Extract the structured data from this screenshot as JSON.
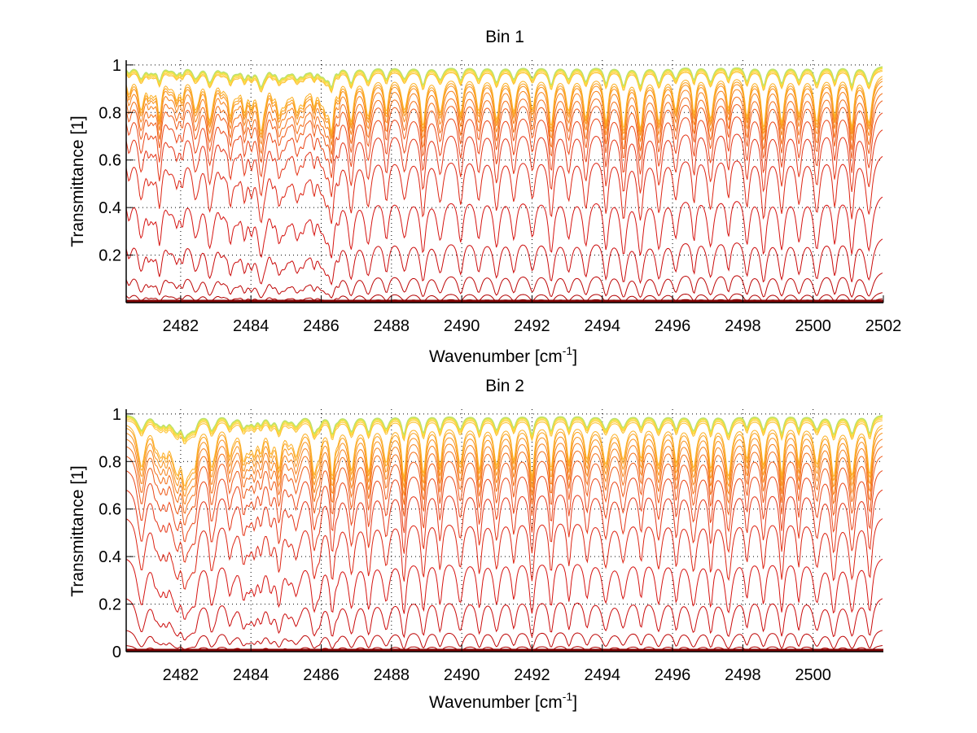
{
  "chart_data": [
    {
      "type": "line",
      "title": "Bin 1",
      "xlabel": "Wavenumber [cm",
      "xlabel_superscript": "-1",
      "xlabel_suffix": "]",
      "ylabel": "Transmittance [1]",
      "xlim": [
        2480.45,
        2502
      ],
      "ylim": [
        0,
        1.02
      ],
      "xticks": [
        2482,
        2484,
        2486,
        2488,
        2490,
        2492,
        2494,
        2496,
        2498,
        2500,
        2502
      ],
      "xtick_labels": [
        "2482",
        "2484",
        "2486",
        "2488",
        "2490",
        "2492",
        "2494",
        "2496",
        "2498",
        "2500",
        "2502"
      ],
      "yticks": [
        0.2,
        0.4,
        0.6,
        0.8,
        1
      ],
      "ytick_labels": [
        "0.2",
        "0.4",
        "0.6",
        "0.8",
        "1"
      ],
      "grid": true,
      "grid_style": "dotted",
      "series_count": 24,
      "series_description": "Family of transmittance spectra for increasing optical depth; continuum levels range from about 0.0 (dark red, bottom) to 1.0 (yellow-green, top)",
      "continuum_levels": [
        0.0,
        0.01,
        0.02,
        0.05,
        0.14,
        0.29,
        0.47,
        0.64,
        0.75,
        0.82,
        0.87,
        0.9,
        0.93,
        0.95,
        0.96,
        0.97,
        0.98,
        0.985,
        0.99,
        0.993,
        0.995,
        0.997,
        0.998,
        0.999
      ],
      "line_positions": [
        2480.9,
        2481.4,
        2481.9,
        2482.4,
        2482.9,
        2483.4,
        2483.8,
        2484.3,
        2484.8,
        2485.3,
        2485.8,
        2486.3,
        2486.85,
        2487.35,
        2487.85,
        2488.35,
        2488.9,
        2489.4,
        2489.95,
        2490.5,
        2491.0,
        2491.5,
        2492.0,
        2492.55,
        2493.05,
        2493.55,
        2494.1,
        2494.6,
        2495.1,
        2495.6,
        2496.1,
        2496.6,
        2497.1,
        2497.6,
        2498.1,
        2498.6,
        2499.1,
        2499.6,
        2500.1,
        2500.6,
        2501.1,
        2501.6
      ],
      "colormap": [
        "#7f0000",
        "#b00000",
        "#d41010",
        "#e8401a",
        "#f57a1a",
        "#fba820",
        "#ffd23a",
        "#e8e84a",
        "#b8e070"
      ]
    },
    {
      "type": "line",
      "title": "Bin 2",
      "xlabel": "Wavenumber [cm",
      "xlabel_superscript": "-1",
      "xlabel_suffix": "]",
      "ylabel": "Transmittance [1]",
      "xlim": [
        2480.45,
        2502
      ],
      "ylim": [
        0,
        1.02
      ],
      "xticks": [
        2482,
        2484,
        2486,
        2488,
        2490,
        2492,
        2494,
        2496,
        2498,
        2500
      ],
      "xtick_labels": [
        "2482",
        "2484",
        "2486",
        "2488",
        "2490",
        "2492",
        "2494",
        "2496",
        "2498",
        "2500"
      ],
      "yticks": [
        0,
        0.2,
        0.4,
        0.6,
        0.8,
        1
      ],
      "ytick_labels": [
        "0",
        "0.2",
        "0.4",
        "0.6",
        "0.8",
        "1"
      ],
      "grid": true,
      "grid_style": "dotted",
      "series_count": 24,
      "series_description": "Family of transmittance spectra for increasing optical depth; continuum levels range from about 0.0 (dark red, bottom) to 1.0 (yellow-green, top)",
      "continuum_levels": [
        0.0,
        0.005,
        0.01,
        0.03,
        0.1,
        0.24,
        0.41,
        0.58,
        0.7,
        0.78,
        0.84,
        0.88,
        0.91,
        0.935,
        0.955,
        0.967,
        0.977,
        0.984,
        0.989,
        0.993,
        0.995,
        0.997,
        0.998,
        0.999
      ],
      "line_positions": [
        2480.9,
        2481.4,
        2481.9,
        2482.4,
        2482.9,
        2483.4,
        2483.8,
        2484.3,
        2484.8,
        2485.3,
        2485.8,
        2486.3,
        2486.85,
        2487.35,
        2487.85,
        2488.35,
        2488.9,
        2489.4,
        2489.95,
        2490.5,
        2491.0,
        2491.5,
        2492.0,
        2492.55,
        2493.05,
        2493.55,
        2494.1,
        2494.6,
        2495.1,
        2495.6,
        2496.1,
        2496.6,
        2497.1,
        2497.6,
        2498.1,
        2498.6,
        2499.1,
        2499.6,
        2500.1,
        2500.6,
        2501.1,
        2501.6
      ],
      "colormap": [
        "#7f0000",
        "#b00000",
        "#d41010",
        "#e8401a",
        "#f57a1a",
        "#fba820",
        "#ffd23a",
        "#e8e84a",
        "#b8e070"
      ]
    }
  ]
}
